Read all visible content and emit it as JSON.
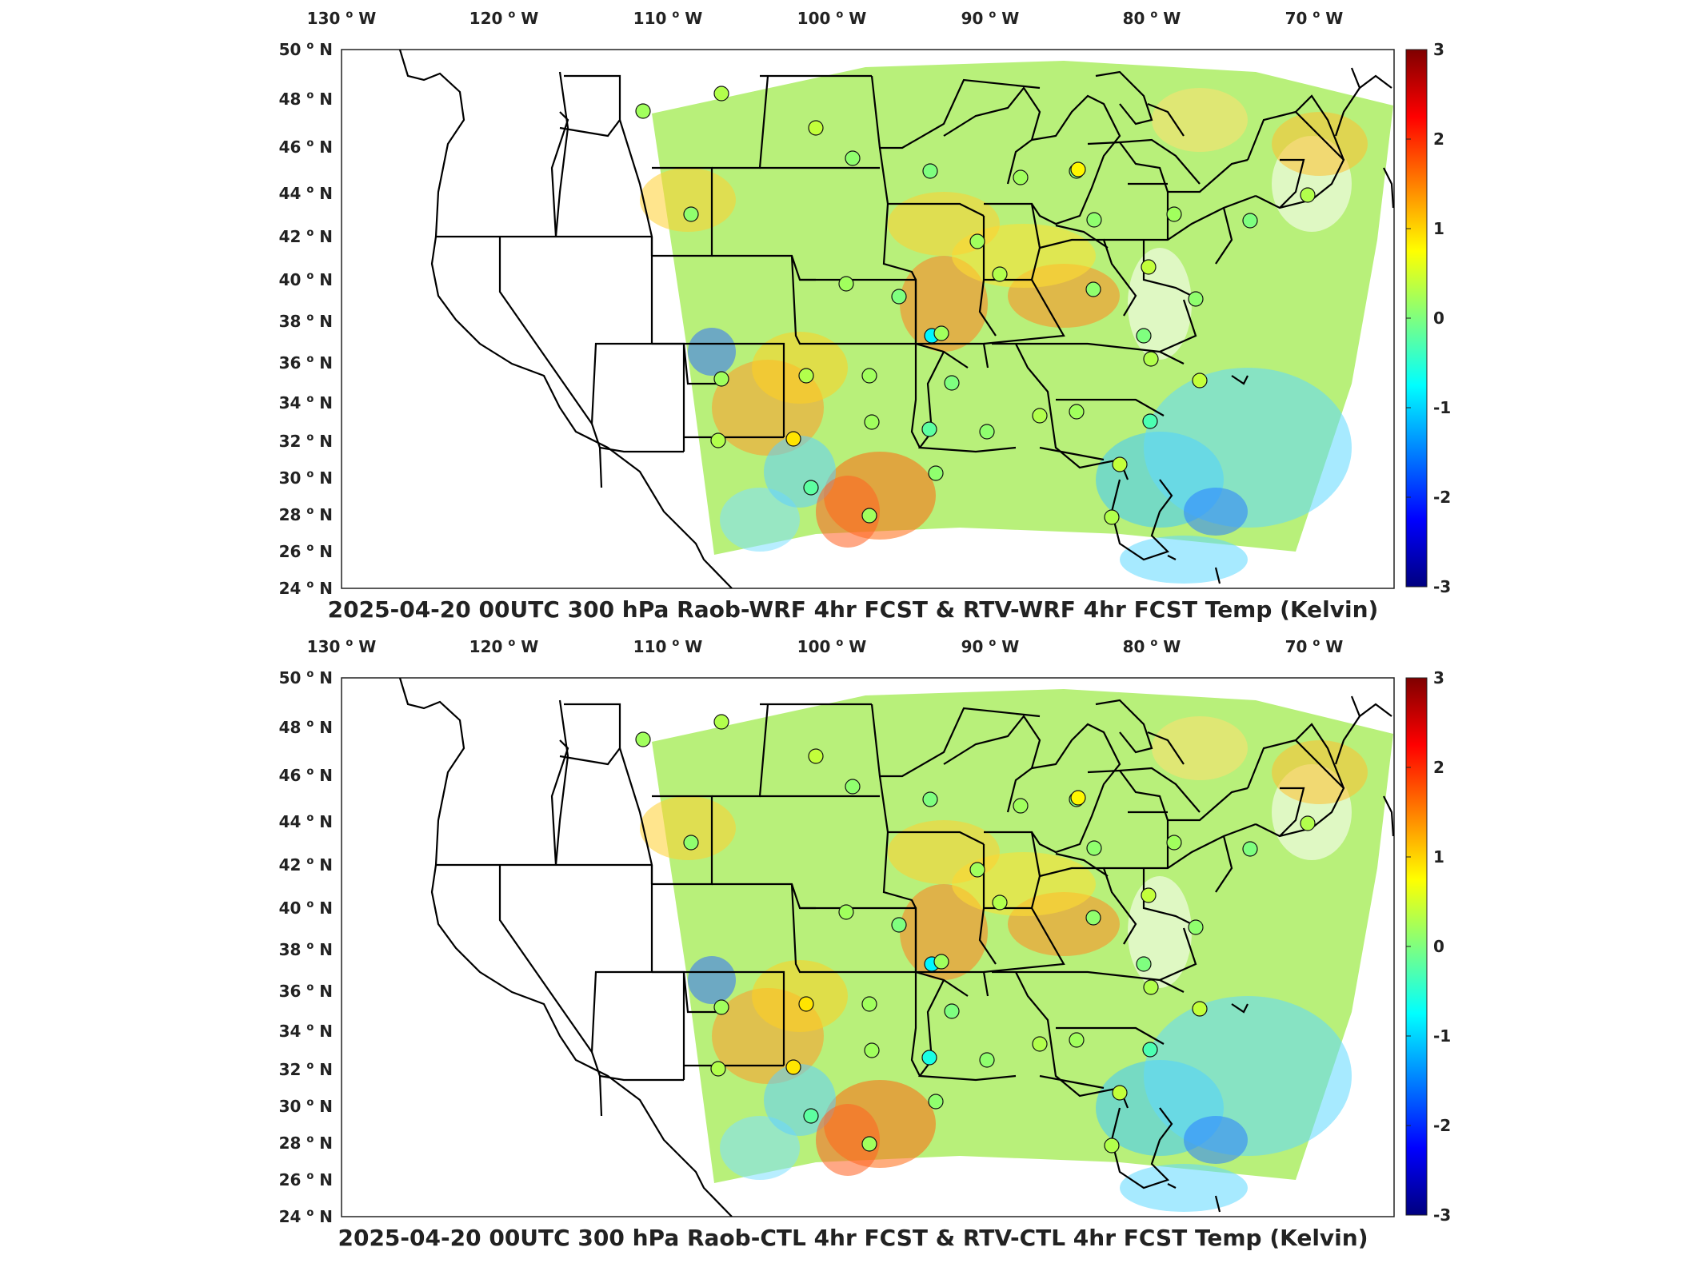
{
  "panels": [
    {
      "title": "2025-04-20 00UTC 300 hPa Raob-WRF 4hr FCST & RTV-WRF 4hr FCST Temp (Kelvin)",
      "raob_values": [
        0.2,
        0.3,
        0.4,
        0.1,
        0.0,
        0.2,
        0.0,
        0.8,
        0.1,
        0.2,
        0.0,
        0.3,
        0.2,
        0.3,
        0.1,
        0.4,
        0.1,
        0.2,
        0.0,
        -0.8,
        0.2,
        0.0,
        0.3,
        0.1,
        0.2,
        0.3,
        0.2,
        0.0,
        -0.2,
        0.1,
        0.3,
        0.2,
        0.4,
        -0.3,
        0.9,
        0.2,
        0.3,
        -0.2,
        0.1
      ]
    },
    {
      "title": "2025-04-20 00UTC 300 hPa Raob-CTL 4hr FCST & RTV-CTL 4hr FCST Temp (Kelvin)",
      "raob_values": [
        0.2,
        0.3,
        0.4,
        0.1,
        0.0,
        0.2,
        0.0,
        0.8,
        0.1,
        0.2,
        0.0,
        0.3,
        0.2,
        0.3,
        0.1,
        0.4,
        0.1,
        0.2,
        0.0,
        -0.8,
        0.2,
        0.0,
        0.3,
        0.1,
        0.2,
        0.9,
        0.2,
        0.0,
        -0.6,
        0.1,
        0.3,
        0.2,
        0.4,
        -0.3,
        0.9,
        0.2,
        0.3,
        -0.2,
        0.1
      ]
    }
  ],
  "map": {
    "lon_ticks": [
      "130",
      "120",
      "110",
      "100",
      "90",
      "80",
      "70"
    ],
    "lon_suffix": "W",
    "lat_ticks": [
      "50",
      "48",
      "46",
      "44",
      "42",
      "40",
      "38",
      "36",
      "34",
      "32",
      "30",
      "28",
      "26",
      "24"
    ],
    "lat_suffix": "N",
    "degree_symbol": "o",
    "lon_range": [
      -133,
      -65
    ],
    "lat_range": [
      24,
      50
    ]
  },
  "colorbar": {
    "ticks": [
      "3",
      "2",
      "1",
      "0",
      "-1",
      "-2",
      "-3"
    ],
    "range": [
      -3,
      3
    ],
    "colormap": "jet",
    "colors": [
      "#00007f",
      "#0000ff",
      "#007fff",
      "#00ffff",
      "#7fff7f",
      "#ffff00",
      "#ff7f00",
      "#ff0000",
      "#7f0000"
    ]
  }
}
